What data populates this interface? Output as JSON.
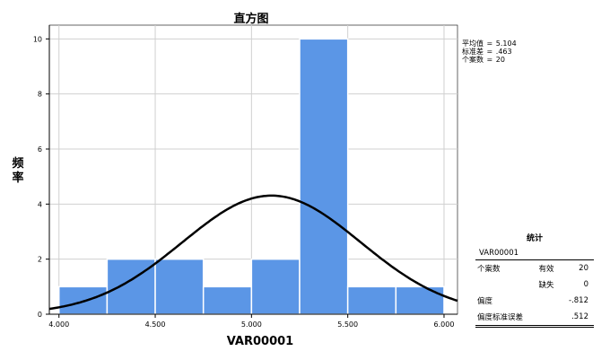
{
  "chart_data": {
    "type": "bar",
    "title": "直方图",
    "xlabel": "VAR00001",
    "ylabel": "频率",
    "bins": [
      {
        "start": 4.0,
        "end": 4.25,
        "count": 1
      },
      {
        "start": 4.25,
        "end": 4.5,
        "count": 2
      },
      {
        "start": 4.5,
        "end": 4.75,
        "count": 2
      },
      {
        "start": 4.75,
        "end": 5.0,
        "count": 1
      },
      {
        "start": 5.0,
        "end": 5.25,
        "count": 2
      },
      {
        "start": 5.25,
        "end": 5.5,
        "count": 10
      },
      {
        "start": 5.5,
        "end": 5.75,
        "count": 1
      },
      {
        "start": 5.75,
        "end": 6.0,
        "count": 1
      }
    ],
    "xlim": [
      3.95,
      6.07
    ],
    "ylim": [
      0,
      10.5
    ],
    "x_ticks": [
      4.0,
      4.5,
      5.0,
      5.5,
      6.0
    ],
    "x_tick_labels": [
      "4.000",
      "4.500",
      "5.000",
      "5.500",
      "6.000"
    ],
    "y_ticks": [
      0,
      2,
      4,
      6,
      8,
      10
    ],
    "y_tick_labels": [
      "0",
      "2",
      "4",
      "6",
      "8",
      "10"
    ],
    "grid": true,
    "normal_curve": {
      "mean": 5.104,
      "sd": 0.463,
      "n": 20,
      "bin_width": 0.25
    },
    "bar_color": "#5b96e6",
    "bar_edge_color": "#ffffff",
    "curve_color": "#000000",
    "grid_color": "#d0d0d0"
  },
  "stat_box": [
    {
      "label": "平均值",
      "value": "5.104"
    },
    {
      "label": "标准差",
      "value": ".463"
    },
    {
      "label": "个案数",
      "value": "20"
    }
  ],
  "stats_table": {
    "title": "统计",
    "variable": "VAR00001",
    "rows": [
      {
        "label": "个案数",
        "sublabel": "有效",
        "value": "20"
      },
      {
        "label": "",
        "sublabel": "缺失",
        "value": "0"
      },
      {
        "label": "偏度",
        "sublabel": "",
        "value": "-.812"
      },
      {
        "label": "偏度标准误差",
        "sublabel": "",
        "value": ".512"
      }
    ]
  }
}
